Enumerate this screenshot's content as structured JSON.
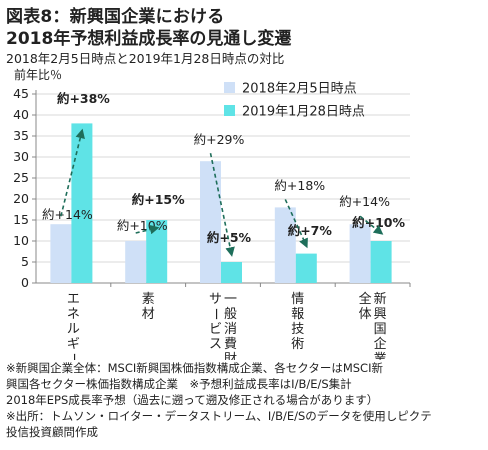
{
  "title_line1": "図表8：新興国企業における",
  "title_line2": "2018年予想利益成長率の見通し変遷",
  "subtitle": "2018年2月5日時点と2019年1月28日時点の対比",
  "y_unit": "前年比％",
  "colors": {
    "series1": "#cfe0f7",
    "series2": "#5fe3e6",
    "arrow": "#1e6e5a",
    "axis": "#888888",
    "grid": "#d9d9d9"
  },
  "chart_data": {
    "type": "bar",
    "categories": [
      "エネルギー",
      "素材",
      "一般消費財\nサービス",
      "情報技術",
      "新興国企業\n全体"
    ],
    "series": [
      {
        "name": "2018年2月5日時点",
        "values": [
          14,
          10,
          29,
          18,
          14
        ]
      },
      {
        "name": "2019年1月28日時点",
        "values": [
          38,
          15,
          5,
          7,
          10
        ]
      }
    ],
    "data_labels": [
      [
        "約+14%",
        "約+10%",
        "約+29%",
        "約+18%",
        "約+14%"
      ],
      [
        "約+38%",
        "約+15%",
        "約+5%",
        "約+7%",
        "約+10%"
      ]
    ],
    "ylim": [
      0,
      45
    ],
    "yticks": [
      0,
      5,
      10,
      15,
      20,
      25,
      30,
      35,
      40,
      45
    ],
    "grid": true,
    "legend_position": "top-right"
  },
  "notes": [
    "※新興国企業全体：MSCI新興国株価指数構成企業、各セクターはMSCI新",
    "興国各セクター株価指数構成企業　※予想利益成長率はI/B/E/S集計",
    "2018年EPS成長率予想（過去に遡って遡及修正される場合があります）",
    "※出所：トムソン・ロイター・データストリーム、I/B/E/Sのデータを使用しピクテ",
    "投信投資顧問作成"
  ]
}
